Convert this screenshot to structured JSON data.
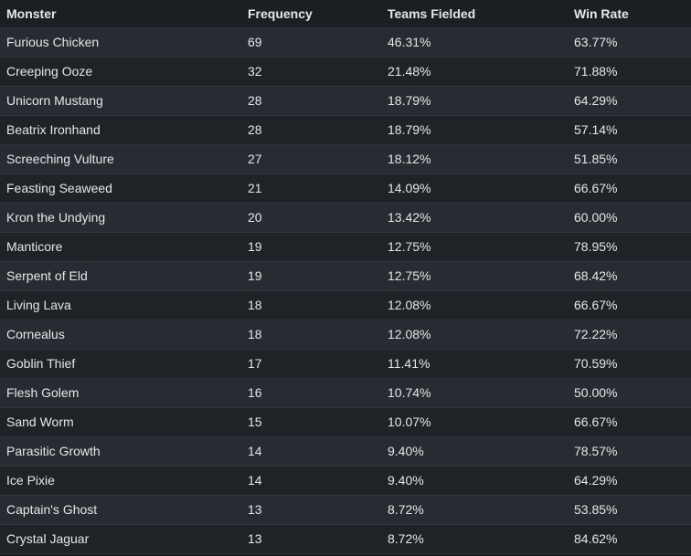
{
  "table": {
    "headers": [
      "Monster",
      "Frequency",
      "Teams Fielded",
      "Win Rate"
    ],
    "rows": [
      [
        "Furious Chicken",
        "69",
        "46.31%",
        "63.77%"
      ],
      [
        "Creeping Ooze",
        "32",
        "21.48%",
        "71.88%"
      ],
      [
        "Unicorn Mustang",
        "28",
        "18.79%",
        "64.29%"
      ],
      [
        "Beatrix Ironhand",
        "28",
        "18.79%",
        "57.14%"
      ],
      [
        "Screeching Vulture",
        "27",
        "18.12%",
        "51.85%"
      ],
      [
        "Feasting Seaweed",
        "21",
        "14.09%",
        "66.67%"
      ],
      [
        "Kron the Undying",
        "20",
        "13.42%",
        "60.00%"
      ],
      [
        "Manticore",
        "19",
        "12.75%",
        "78.95%"
      ],
      [
        "Serpent of Eld",
        "19",
        "12.75%",
        "68.42%"
      ],
      [
        "Living Lava",
        "18",
        "12.08%",
        "66.67%"
      ],
      [
        "Cornealus",
        "18",
        "12.08%",
        "72.22%"
      ],
      [
        "Goblin Thief",
        "17",
        "11.41%",
        "70.59%"
      ],
      [
        "Flesh Golem",
        "16",
        "10.74%",
        "50.00%"
      ],
      [
        "Sand Worm",
        "15",
        "10.07%",
        "66.67%"
      ],
      [
        "Parasitic Growth",
        "14",
        "9.40%",
        "78.57%"
      ],
      [
        "Ice Pixie",
        "14",
        "9.40%",
        "64.29%"
      ],
      [
        "Captain's Ghost",
        "13",
        "8.72%",
        "53.85%"
      ],
      [
        "Crystal Jaguar",
        "13",
        "8.72%",
        "84.62%"
      ]
    ]
  }
}
